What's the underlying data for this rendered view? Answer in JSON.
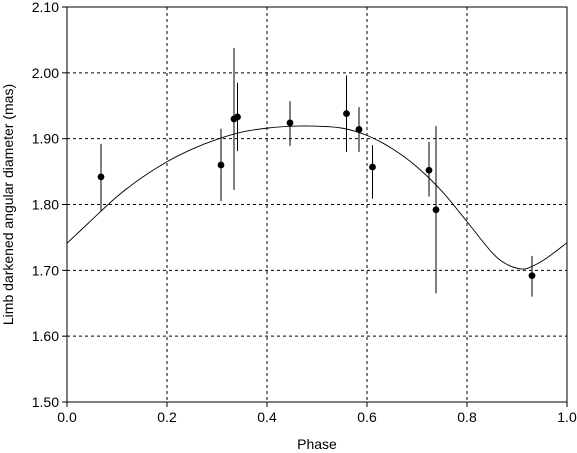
{
  "chart_data": {
    "type": "scatter",
    "xlabel": "Phase",
    "ylabel": "Limb darkened angular diameter (mas)",
    "xlim": [
      0.0,
      1.0
    ],
    "ylim": [
      1.5,
      2.1
    ],
    "xticks": [
      "0.0",
      "0.2",
      "0.4",
      "0.6",
      "0.8",
      "1.0"
    ],
    "yticks": [
      "1.50",
      "1.60",
      "1.70",
      "1.80",
      "1.90",
      "2.00",
      "2.10"
    ],
    "grid": "dashed",
    "measurements": [
      {
        "x": 0.068,
        "y": 1.842,
        "err_low": 0.052,
        "err_high": 0.05
      },
      {
        "x": 0.308,
        "y": 1.86,
        "err_low": 0.055,
        "err_high": 0.055
      },
      {
        "x": 0.334,
        "y": 1.93,
        "err_low": 0.108,
        "err_high": 0.108
      },
      {
        "x": 0.341,
        "y": 1.933,
        "err_low": 0.052,
        "err_high": 0.052
      },
      {
        "x": 0.446,
        "y": 1.924,
        "err_low": 0.035,
        "err_high": 0.033
      },
      {
        "x": 0.559,
        "y": 1.938,
        "err_low": 0.058,
        "err_high": 0.058
      },
      {
        "x": 0.584,
        "y": 1.914,
        "err_low": 0.034,
        "err_high": 0.034
      },
      {
        "x": 0.611,
        "y": 1.857,
        "err_low": 0.048,
        "err_high": 0.033
      },
      {
        "x": 0.724,
        "y": 1.852,
        "err_low": 0.04,
        "err_high": 0.043
      },
      {
        "x": 0.738,
        "y": 1.792,
        "err_low": 0.127,
        "err_high": 0.127
      },
      {
        "x": 0.93,
        "y": 1.692,
        "err_low": 0.032,
        "err_high": 0.03
      }
    ],
    "model_curve": {
      "x": [
        0.0,
        0.05,
        0.1,
        0.15,
        0.2,
        0.25,
        0.3,
        0.35,
        0.4,
        0.45,
        0.5,
        0.55,
        0.6,
        0.65,
        0.7,
        0.75,
        0.8,
        0.85,
        0.88,
        0.91,
        0.93,
        0.96,
        1.0
      ],
      "y": [
        1.741,
        1.777,
        1.812,
        1.841,
        1.865,
        1.884,
        1.899,
        1.91,
        1.916,
        1.919,
        1.919,
        1.916,
        1.905,
        1.885,
        1.857,
        1.82,
        1.774,
        1.727,
        1.709,
        1.702,
        1.706,
        1.719,
        1.742
      ]
    }
  }
}
